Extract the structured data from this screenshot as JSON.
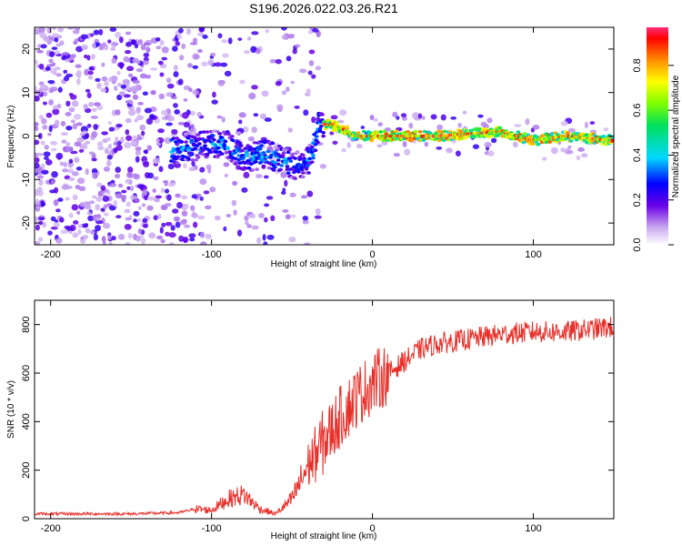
{
  "title": "S196.2026.022.03.26.R21",
  "chart_data": [
    {
      "type": "heatmap",
      "name": "spectrogram",
      "xlabel": "Height of straight line (km)",
      "ylabel": "Frequency (Hz)",
      "xlim": [
        -210,
        150
      ],
      "ylim": [
        -25,
        25
      ],
      "xticks": [
        -200,
        -100,
        0,
        100
      ],
      "yticks": [
        -20,
        -10,
        0,
        10,
        20
      ],
      "colorbar": {
        "label": "Normalized spectral amplitude",
        "range": [
          0,
          0.97
        ],
        "ticks": [
          0.0,
          0.2,
          0.4,
          0.6,
          0.8
        ]
      },
      "ridge": [
        {
          "x": -120,
          "y": -3
        },
        {
          "x": -105,
          "y": -2
        },
        {
          "x": -90,
          "y": -2
        },
        {
          "x": -80,
          "y": -5
        },
        {
          "x": -65,
          "y": -4
        },
        {
          "x": -55,
          "y": -6
        },
        {
          "x": -45,
          "y": -7
        },
        {
          "x": -38,
          "y": -5
        },
        {
          "x": -33,
          "y": 3
        },
        {
          "x": -20,
          "y": 2
        },
        {
          "x": -10,
          "y": 0
        },
        {
          "x": 0,
          "y": 0
        },
        {
          "x": 20,
          "y": 0
        },
        {
          "x": 40,
          "y": 0
        },
        {
          "x": 60,
          "y": 0.5
        },
        {
          "x": 80,
          "y": 1
        },
        {
          "x": 100,
          "y": -1
        },
        {
          "x": 120,
          "y": 0
        },
        {
          "x": 150,
          "y": -1
        }
      ]
    },
    {
      "type": "line",
      "name": "snr",
      "xlabel": "Height of straight line (km)",
      "ylabel": "SNR (10 * v/v)",
      "xlim": [
        -210,
        150
      ],
      "ylim": [
        0,
        900
      ],
      "xticks": [
        -200,
        -100,
        0,
        100
      ],
      "yticks": [
        0,
        200,
        400,
        600,
        800
      ],
      "color": "#e8302a",
      "series": [
        {
          "name": "SNR",
          "x": [
            -210,
            -150,
            -120,
            -110,
            -100,
            -90,
            -80,
            -70,
            -60,
            -50,
            -40,
            -30,
            -20,
            -10,
            0,
            10,
            20,
            30,
            40,
            60,
            80,
            100,
            120,
            150
          ],
          "values": [
            20,
            20,
            25,
            40,
            35,
            80,
            100,
            40,
            20,
            80,
            220,
            320,
            420,
            500,
            560,
            600,
            650,
            700,
            720,
            740,
            760,
            770,
            770,
            790
          ]
        }
      ]
    }
  ]
}
